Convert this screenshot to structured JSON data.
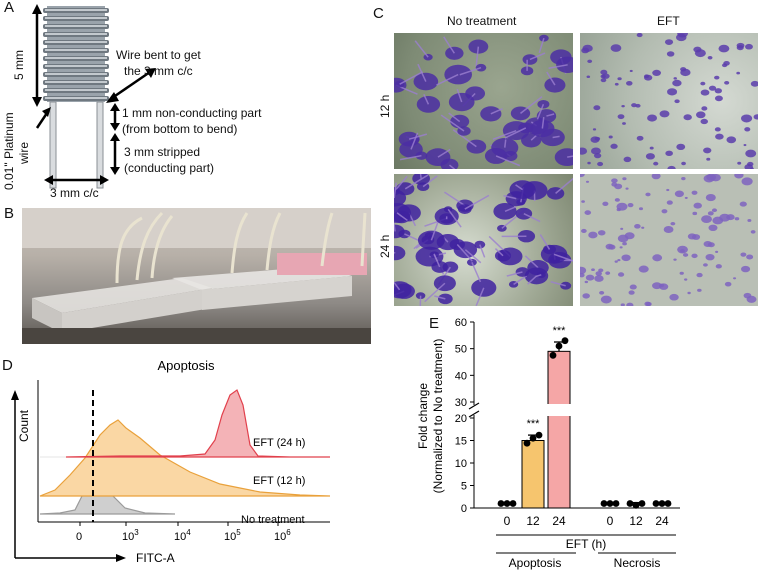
{
  "panels": {
    "a": {
      "letter": "A",
      "dim_height": "5 mm",
      "wire_bent_line1": "Wire bent to get",
      "wire_bent_line2": "the 3 mm c/c",
      "nonconducting_line1": "1 mm non-conducting part",
      "nonconducting_line2": "(from bottom to bend)",
      "stripped_line1": "3 mm stripped",
      "stripped_line2": "(conducting part)",
      "platinum_line1": "0.01\" Platinum",
      "platinum_line2": "wire",
      "spacing": "3 mm c/c"
    },
    "b": {
      "letter": "B"
    },
    "c": {
      "letter": "C",
      "col_no_treatment": "No treatment",
      "col_eft": "EFT",
      "row_12h": "12 h",
      "row_24h": "24 h"
    },
    "d": {
      "letter": "D",
      "title": "Apoptosis",
      "ylabel": "Count",
      "xlabel": "FITC-A",
      "curve_labels": [
        "EFT (24 h)",
        "EFT (12 h)",
        "No treatment"
      ],
      "ticks": [
        "0",
        "10",
        "10",
        "10",
        "10"
      ],
      "tick_exps": [
        "",
        "3",
        "4",
        "5",
        "6"
      ]
    },
    "e": {
      "letter": "E"
    }
  },
  "chart_data": {
    "type": "bar",
    "ylabel": "Fold change",
    "ylabel2": "(Normalized to No treatment)",
    "xlabel": "EFT (h)",
    "groups": [
      "Apoptosis",
      "Necrosis"
    ],
    "categories": [
      "0",
      "12",
      "24",
      "0",
      "12",
      "24"
    ],
    "values": [
      1,
      15,
      49,
      1,
      1,
      1
    ],
    "points": [
      [
        1,
        1,
        1
      ],
      [
        14.4,
        15.5,
        16.2
      ],
      [
        47.5,
        51,
        53
      ],
      [
        1,
        1,
        1
      ],
      [
        1,
        0.6,
        1
      ],
      [
        1,
        1,
        1
      ]
    ],
    "errors": [
      0,
      1.2,
      3.5,
      0,
      0.2,
      0
    ],
    "significance": [
      "",
      "***",
      "***",
      "",
      "",
      ""
    ],
    "colors": [
      "#ffffff",
      "#f6c56e",
      "#f5a6a6",
      "#ffffff",
      "#ffffff",
      "#ffffff"
    ],
    "y_ticks_lower": [
      "0",
      "5",
      "10",
      "15",
      "20"
    ],
    "y_ticks_upper": [
      "30",
      "40",
      "50",
      "60"
    ],
    "ylim_lower": [
      0,
      20
    ],
    "ylim_upper": [
      30,
      60
    ],
    "axis_break": true
  }
}
